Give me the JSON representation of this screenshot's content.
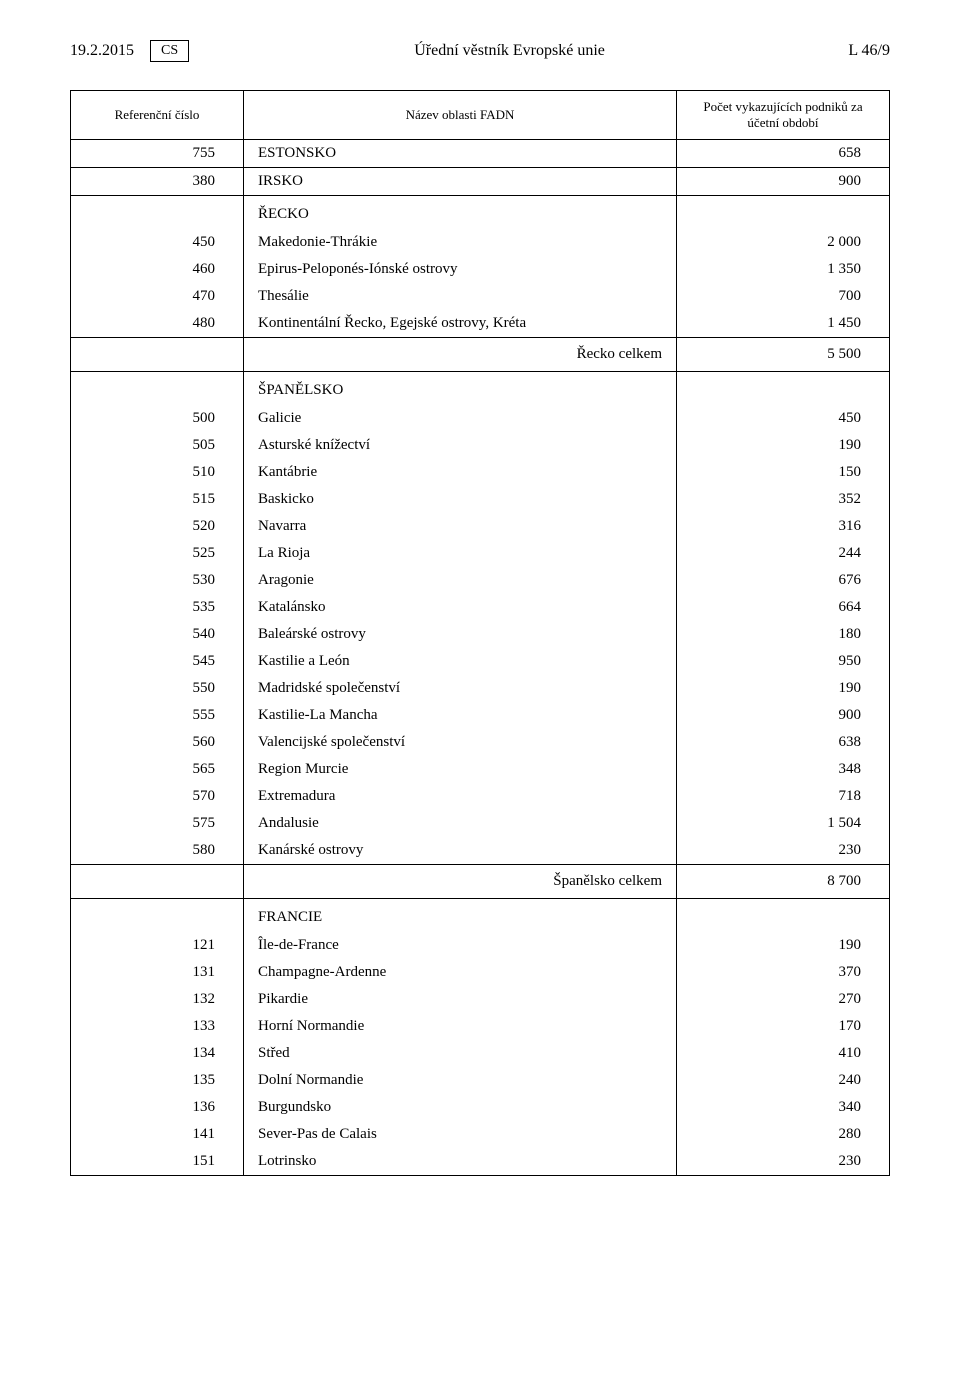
{
  "header": {
    "date": "19.2.2015",
    "lang": "CS",
    "title": "Úřední věstník Evropské unie",
    "page_ref": "L 46/9"
  },
  "columns": {
    "ref": "Referenční číslo",
    "name": "Název oblasti FADN",
    "count": "Počet vykazujících podniků za účetní období"
  },
  "rows": [
    {
      "ref": "755",
      "name": "ESTONSKO",
      "count": "658",
      "divider_above": false
    },
    {
      "ref": "380",
      "name": "IRSKO",
      "count": "900",
      "divider_above": true
    },
    {
      "section": true,
      "name": "ŘECKO",
      "divider_above": true
    },
    {
      "ref": "450",
      "name": "Makedonie-Thrákie",
      "count": "2 000"
    },
    {
      "ref": "460",
      "name": "Epirus-Peloponés-Iónské ostrovy",
      "count": "1 350"
    },
    {
      "ref": "470",
      "name": "Thesálie",
      "count": "700"
    },
    {
      "ref": "480",
      "name": "Kontinentální Řecko, Egejské ostrovy, Kréta",
      "count": "1 450"
    },
    {
      "total": true,
      "name": "Řecko celkem",
      "count": "5 500"
    },
    {
      "section": true,
      "name": "ŠPANĚLSKO"
    },
    {
      "ref": "500",
      "name": "Galicie",
      "count": "450"
    },
    {
      "ref": "505",
      "name": "Asturské knížectví",
      "count": "190"
    },
    {
      "ref": "510",
      "name": "Kantábrie",
      "count": "150"
    },
    {
      "ref": "515",
      "name": "Baskicko",
      "count": "352"
    },
    {
      "ref": "520",
      "name": "Navarra",
      "count": "316"
    },
    {
      "ref": "525",
      "name": "La Rioja",
      "count": "244"
    },
    {
      "ref": "530",
      "name": "Aragonie",
      "count": "676"
    },
    {
      "ref": "535",
      "name": "Katalánsko",
      "count": "664"
    },
    {
      "ref": "540",
      "name": "Baleárské ostrovy",
      "count": "180"
    },
    {
      "ref": "545",
      "name": "Kastilie a León",
      "count": "950"
    },
    {
      "ref": "550",
      "name": "Madridské společenství",
      "count": "190"
    },
    {
      "ref": "555",
      "name": "Kastilie-La Mancha",
      "count": "900"
    },
    {
      "ref": "560",
      "name": "Valencijské společenství",
      "count": "638"
    },
    {
      "ref": "565",
      "name": "Region Murcie",
      "count": "348"
    },
    {
      "ref": "570",
      "name": "Extremadura",
      "count": "718"
    },
    {
      "ref": "575",
      "name": "Andalusie",
      "count": "1 504"
    },
    {
      "ref": "580",
      "name": "Kanárské ostrovy",
      "count": "230"
    },
    {
      "total": true,
      "name": "Španělsko celkem",
      "count": "8 700"
    },
    {
      "section": true,
      "name": "FRANCIE"
    },
    {
      "ref": "121",
      "name": "Île-de-France",
      "count": "190"
    },
    {
      "ref": "131",
      "name": "Champagne-Ardenne",
      "count": "370"
    },
    {
      "ref": "132",
      "name": "Pikardie",
      "count": "270"
    },
    {
      "ref": "133",
      "name": "Horní Normandie",
      "count": "170"
    },
    {
      "ref": "134",
      "name": "Střed",
      "count": "410"
    },
    {
      "ref": "135",
      "name": "Dolní Normandie",
      "count": "240"
    },
    {
      "ref": "136",
      "name": "Burgundsko",
      "count": "340"
    },
    {
      "ref": "141",
      "name": "Sever-Pas de Calais",
      "count": "280"
    },
    {
      "ref": "151",
      "name": "Lotrinsko",
      "count": "230"
    }
  ]
}
